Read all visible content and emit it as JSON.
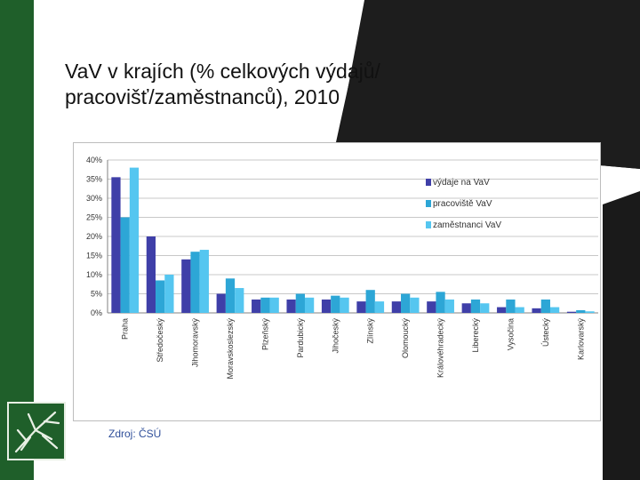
{
  "slide": {
    "title_line1": "VaV v krajích (% celkových výdajů/",
    "title_line2": "pracovišť/zaměstnanců), 2010",
    "source": "Zdroj: ČSÚ",
    "logo_icon": "tree-logo-icon"
  },
  "colors": {
    "green_band": "#1f5f2a",
    "series_1": "#3f3fa8",
    "series_2": "#2da6d6",
    "series_3": "#55c6f0"
  },
  "chart_data": {
    "type": "bar",
    "title": "",
    "xlabel": "",
    "ylabel": "",
    "ylim": [
      0,
      40
    ],
    "yticks": [
      "0%",
      "5%",
      "10%",
      "15%",
      "20%",
      "25%",
      "30%",
      "35%",
      "40%"
    ],
    "grid": true,
    "legend_position": "right",
    "categories": [
      "Praha",
      "Středočeský",
      "Jihomoravský",
      "Moravskoslezský",
      "Plzeňský",
      "Pardubický",
      "Jihočeský",
      "Zlínský",
      "Olomoucký",
      "Královéhradecký",
      "Liberecký",
      "Vysočina",
      "Ústecký",
      "Karlovarský"
    ],
    "series": [
      {
        "name": "výdaje na VaV",
        "values": [
          35.5,
          20,
          14,
          5,
          3.5,
          3.5,
          3.5,
          3,
          3,
          3,
          2.5,
          1.5,
          1.2,
          0.3
        ]
      },
      {
        "name": "pracoviště VaV",
        "values": [
          25,
          8.5,
          16,
          9,
          4,
          5,
          4.5,
          6,
          5,
          5.5,
          3.5,
          3.5,
          3.5,
          0.7
        ]
      },
      {
        "name": "zaměstnanci VaV",
        "values": [
          38,
          10,
          16.5,
          6.5,
          4,
          4,
          4,
          3,
          4,
          3.5,
          2.5,
          1.5,
          1.5,
          0.4
        ]
      }
    ]
  }
}
